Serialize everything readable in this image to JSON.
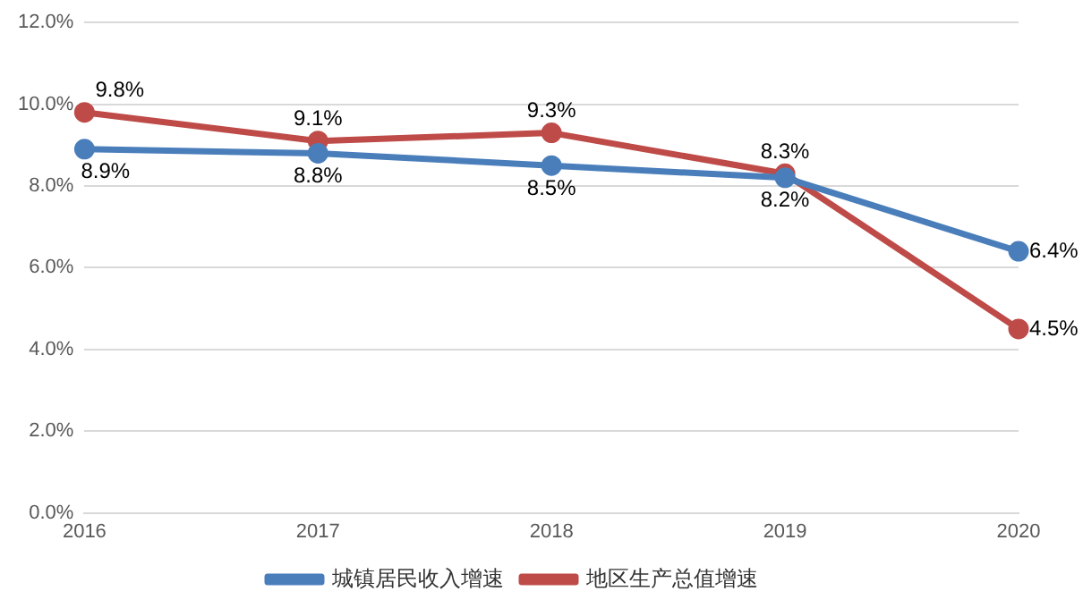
{
  "chart_data": {
    "type": "line",
    "categories": [
      "2016",
      "2017",
      "2018",
      "2019",
      "2020"
    ],
    "series": [
      {
        "name": "城镇居民收入增速",
        "color": "#4a7ebb",
        "values": [
          8.9,
          8.8,
          8.5,
          8.2,
          6.4
        ],
        "value_labels": [
          "8.9%",
          "8.8%",
          "8.5%",
          "8.2%",
          "6.4%"
        ]
      },
      {
        "name": "地区生产总值增速",
        "color": "#be4b48",
        "values": [
          9.8,
          9.1,
          9.3,
          8.3,
          4.5
        ],
        "value_labels": [
          "9.8%",
          "9.1%",
          "9.3%",
          "8.3%",
          "4.5%"
        ]
      }
    ],
    "ylim": [
      0,
      12
    ],
    "yticks": [
      {
        "value": 0,
        "label": "0.0%"
      },
      {
        "value": 2,
        "label": "2.0%"
      },
      {
        "value": 4,
        "label": "4.0%"
      },
      {
        "value": 6,
        "label": "6.0%"
      },
      {
        "value": 8,
        "label": "8.0%"
      },
      {
        "value": 10,
        "label": "10.0%"
      },
      {
        "value": 12,
        "label": "12.0%"
      }
    ],
    "grid": "y",
    "legend": "bottom",
    "marker": "circle",
    "line_style": "solid"
  }
}
